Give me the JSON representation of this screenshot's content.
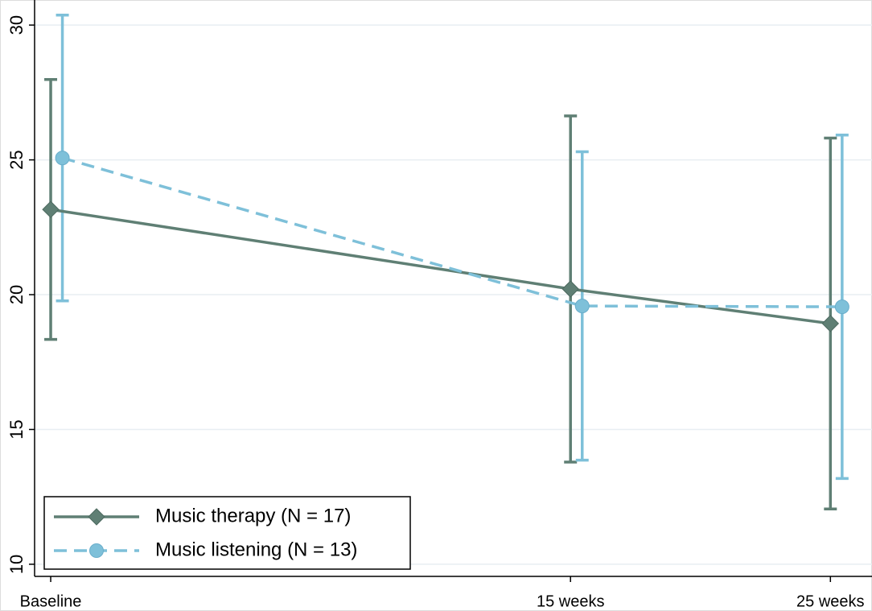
{
  "chart_data": {
    "type": "line-errorbar",
    "xlim": [
      -5.62,
      26.6
    ],
    "ylim": [
      9.55,
      30.93
    ],
    "xticks": [
      {
        "value": -5,
        "label": "Baseline"
      },
      {
        "value": 15,
        "label": "15 weeks"
      },
      {
        "value": 25,
        "label": "25 weeks"
      }
    ],
    "yticks": [
      10,
      15,
      20,
      25,
      30
    ],
    "grid": true,
    "legend": "lower left",
    "series": [
      {
        "name": "Music therapy (N = 17)",
        "color": "#5f7f74",
        "marker": "diamond",
        "line_style": "solid",
        "x": [
          -5,
          15,
          25
        ],
        "values": [
          23.16,
          20.21,
          18.93
        ],
        "errors": [
          4.82,
          6.42,
          6.88
        ]
      },
      {
        "name": "Music listening (N = 13)",
        "color": "#7ec0d9",
        "marker": "circle",
        "line_style": "dashed",
        "x": [
          -4.55,
          15.45,
          25.45
        ],
        "values": [
          25.07,
          19.58,
          19.55
        ],
        "errors": [
          5.3,
          5.72,
          6.37
        ]
      }
    ]
  }
}
